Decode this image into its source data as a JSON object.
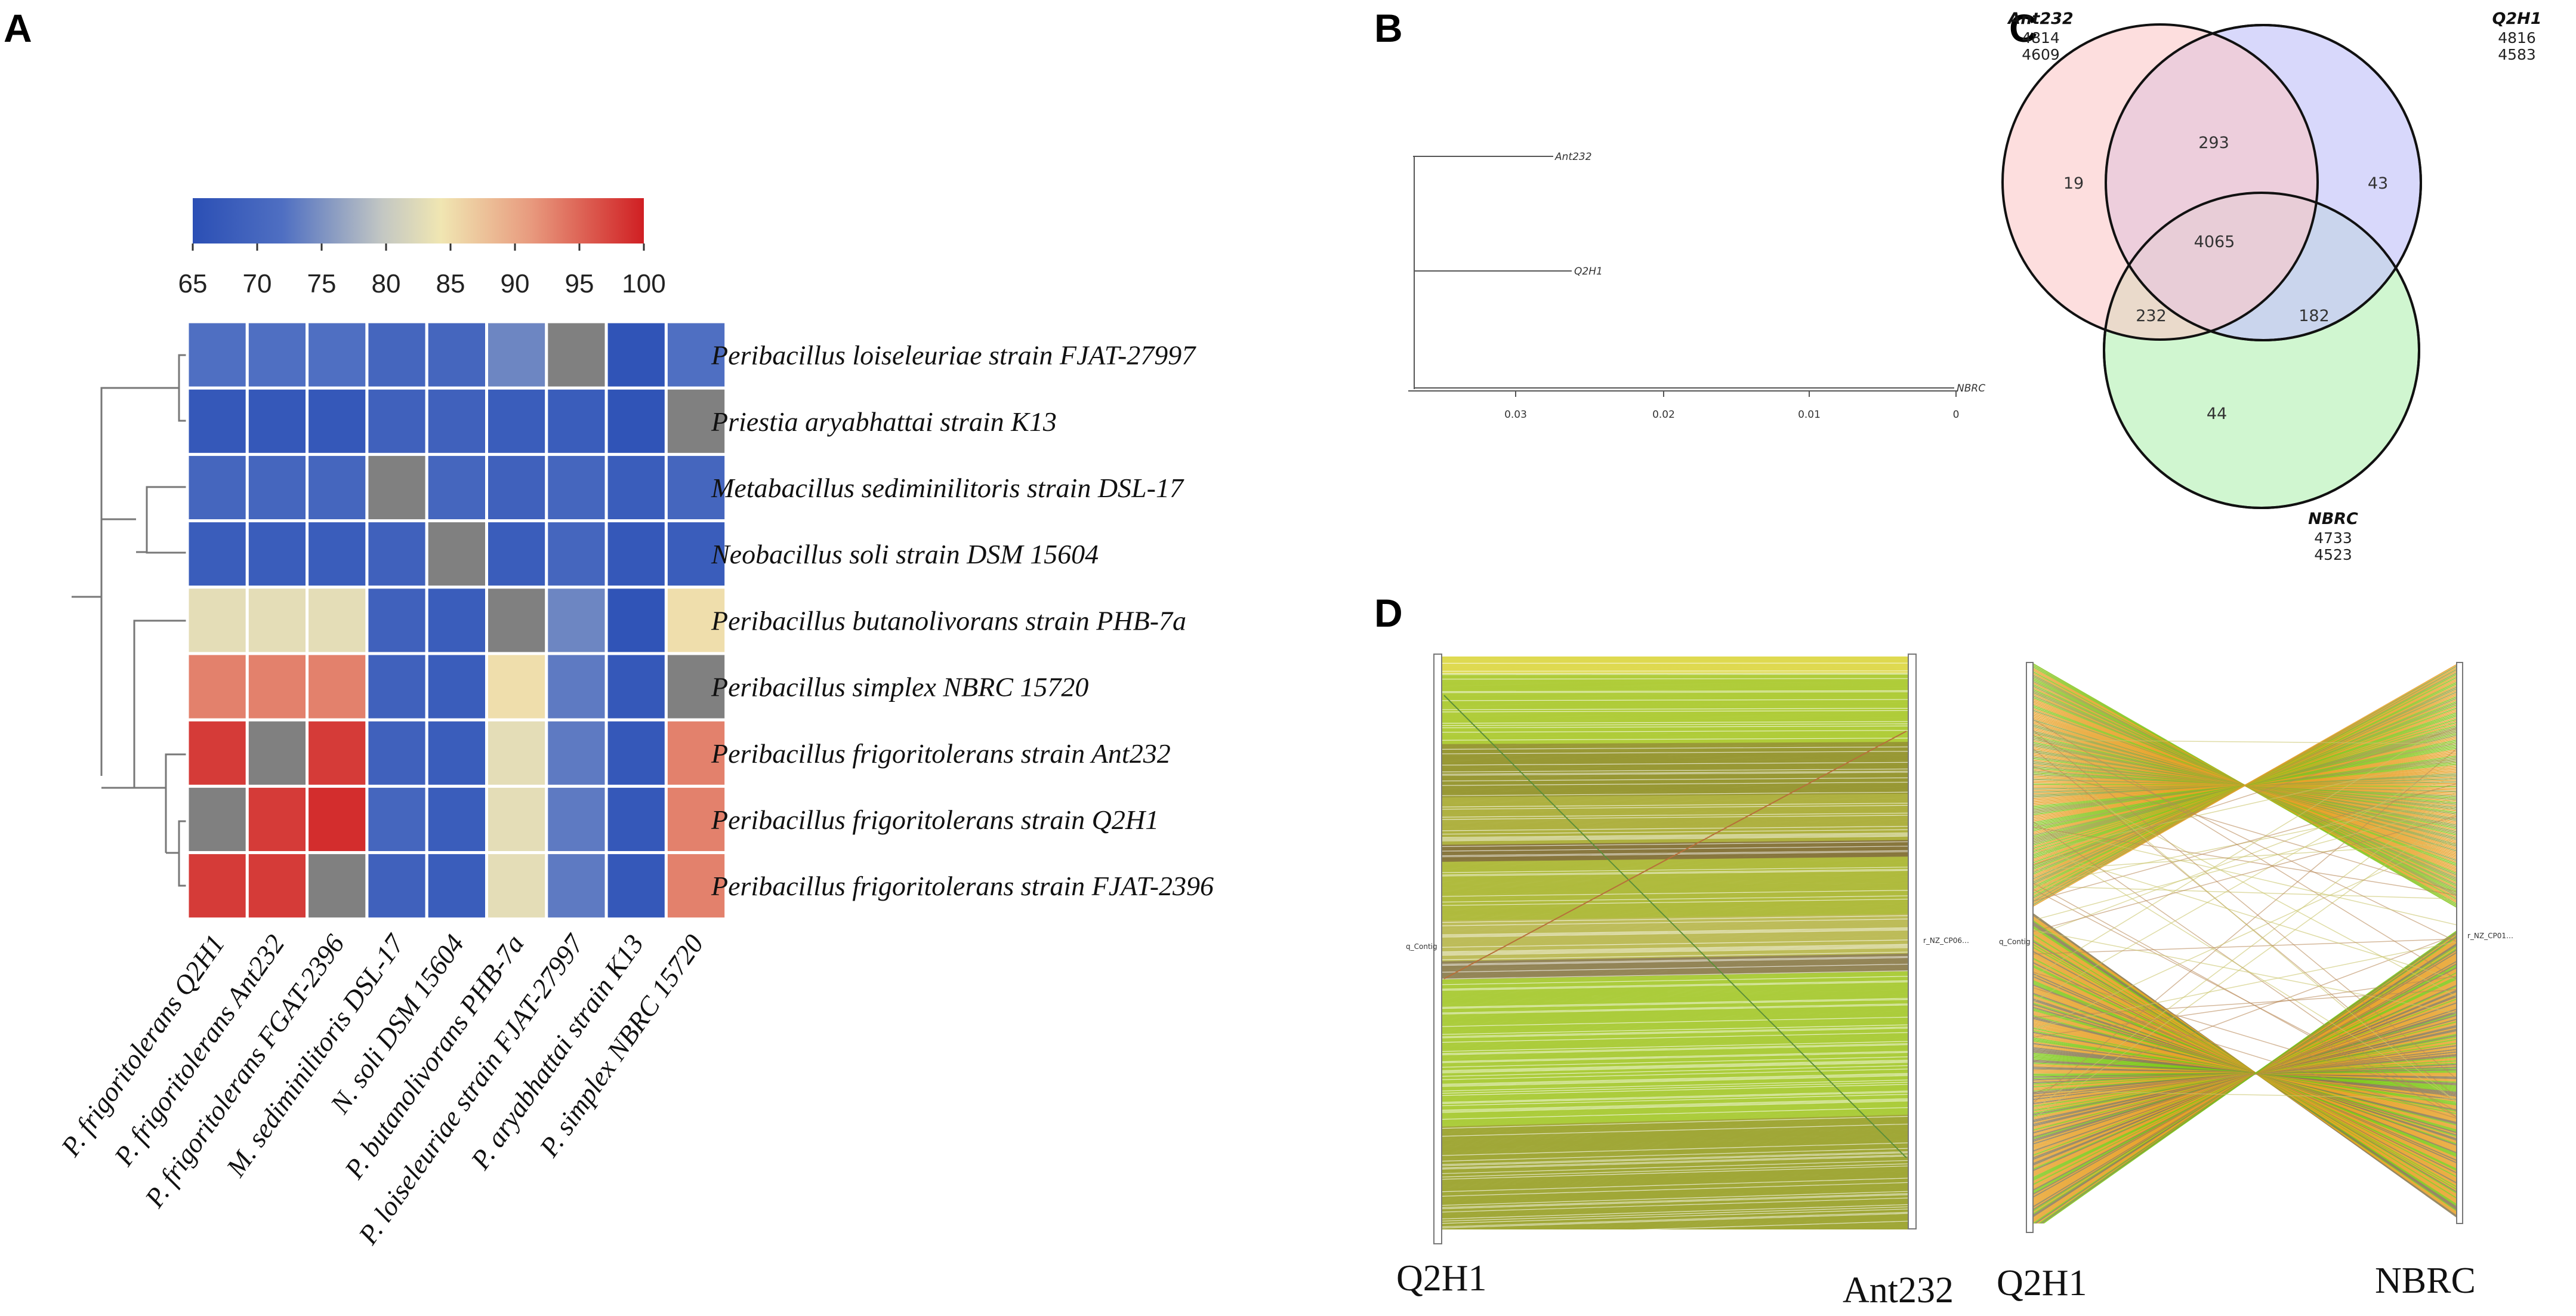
{
  "panels": {
    "a": "A",
    "b": "B",
    "c": "C",
    "d": "D"
  },
  "chart_data": [
    {
      "type": "heatmap",
      "title": "",
      "colorbar": {
        "ticks": [
          65,
          70,
          75,
          80,
          85,
          90,
          95,
          100
        ],
        "range": [
          65,
          100
        ],
        "colors": [
          "#2b4fb5",
          "#f0e6b2",
          "#d01f23"
        ]
      },
      "rows": [
        "Peribacillus loiseleuriae strain FJAT-27997",
        "Priestia aryabhattai strain K13",
        "Metabacillus sediminilitoris strain DSL-17",
        "Neobacillus soli strain DSM 15604",
        "Peribacillus butanolivorans strain PHB-7a",
        "Peribacillus simplex NBRC 15720",
        "Peribacillus frigoritolerans strain Ant232",
        "Peribacillus frigoritolerans strain Q2H1",
        "Peribacillus frigoritolerans strain FJAT-2396"
      ],
      "columns": [
        "P. frigoritolerans Q2H1",
        "P. frigoritolerans Ant232",
        "P. frigoritolerans FGAT-2396",
        "M. sediminilitoris DSL-17",
        "N. soli DSM 15604",
        "P. butanolivorans PHB-7a",
        "P. loiseleuriae strain FJAT-27997",
        "P. aryabhattai strain K13",
        "P. simplex NBRC 15720"
      ],
      "values": [
        [
          72,
          72,
          72,
          70,
          70,
          74,
          null,
          66,
          72
        ],
        [
          67,
          67,
          67,
          69,
          69,
          68,
          68,
          66,
          null
        ],
        [
          70,
          70,
          70,
          null,
          70,
          69,
          70,
          68,
          70
        ],
        [
          68,
          68,
          68,
          69,
          null,
          68,
          70,
          67,
          68
        ],
        [
          83,
          83,
          83,
          69,
          68,
          null,
          74,
          66,
          85
        ],
        [
          93,
          93,
          93,
          69,
          68,
          85,
          73,
          67,
          null
        ],
        [
          98,
          null,
          98,
          69,
          68,
          83,
          73,
          67,
          93
        ],
        [
          null,
          98,
          99,
          70,
          68,
          83,
          73,
          67,
          93
        ],
        [
          98,
          98,
          null,
          69,
          68,
          83,
          73,
          67,
          93
        ]
      ],
      "missing_color": "#808080",
      "dendrogram": "rows"
    },
    {
      "type": "tree",
      "leaves": [
        "Ant232",
        "Q2H1",
        "NBRC"
      ],
      "axis_ticks": [
        "0.03",
        "0.02",
        "0.01",
        "0"
      ],
      "axis_range": [
        0.038,
        0
      ]
    },
    {
      "type": "venn",
      "sets": [
        {
          "name": "Ant232",
          "line1": "4814",
          "line2": "4609",
          "color": "#fbc8c8"
        },
        {
          "name": "Q2H1",
          "line1": "4816",
          "line2": "4583",
          "color": "#c8c8f9"
        },
        {
          "name": "NBRC",
          "line1": "4733",
          "line2": "4523",
          "color": "#c8f4c8"
        }
      ],
      "regions": {
        "ant_only": "19",
        "q2h1_only": "43",
        "nbrc_only": "44",
        "ant_q2h1": "293",
        "ant_nbrc": "232",
        "q2h1_nbrc": "182",
        "all": "4065"
      }
    },
    {
      "type": "synteny",
      "plots": [
        {
          "left": "Q2H1",
          "right": "Ant232",
          "left_contig": "q_Contig",
          "right_contig": "r_NZ_CP06…"
        },
        {
          "left": "Q2H1",
          "right": "NBRC",
          "left_contig": "q_Contig",
          "right_contig": "r_NZ_CP01…"
        }
      ]
    }
  ]
}
